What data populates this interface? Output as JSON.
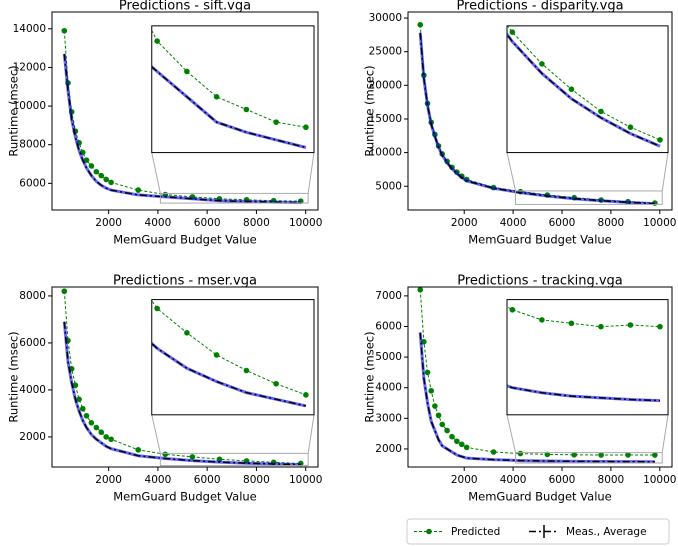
{
  "chart_data": [
    {
      "type": "line",
      "title": "Predictions - sift.vga",
      "xlabel": "MemGuard Budget Value",
      "ylabel": "Runtime (msec)",
      "x": [
        200,
        350,
        500,
        650,
        800,
        950,
        1100,
        1300,
        1500,
        1700,
        1900,
        2100,
        3200,
        4300,
        5400,
        6500,
        7600,
        8700,
        9800
      ],
      "xlim": [
        -300,
        10500
      ],
      "xticks": [
        2000,
        4000,
        6000,
        8000,
        10000
      ],
      "ylim": [
        4620,
        14870
      ],
      "yticks": [
        6000,
        8000,
        10000,
        12000,
        14000
      ],
      "inset": {
        "xlim": [
          4100,
          10100
        ],
        "ylim": [
          4980,
          5480
        ]
      },
      "series": [
        {
          "name": "Predicted",
          "color": "#008000",
          "linestyle": "dashed",
          "marker": "circle",
          "values": [
            13900,
            11200,
            9700,
            8700,
            8100,
            7600,
            7200,
            6900,
            6600,
            6400,
            6200,
            6050,
            5650,
            5420,
            5300,
            5200,
            5150,
            5100,
            5080
          ]
        },
        {
          "name": "Meas., Average",
          "color": "#000000",
          "band_color": "#0000ff",
          "linestyle": "dashdot",
          "marker": "none",
          "values": [
            12700,
            10800,
            9300,
            8400,
            7700,
            7200,
            6800,
            6400,
            6100,
            5900,
            5750,
            5650,
            5400,
            5300,
            5200,
            5100,
            5060,
            5030,
            5000
          ]
        }
      ]
    },
    {
      "type": "line",
      "title": "Predictions - disparity.vga",
      "xlabel": "MemGuard Budget Value",
      "ylabel": "Runtime (msec)",
      "x": [
        200,
        350,
        500,
        650,
        800,
        950,
        1100,
        1300,
        1500,
        1700,
        1900,
        2100,
        3200,
        4300,
        5400,
        6500,
        7600,
        8700,
        9800
      ],
      "xlim": [
        -300,
        10500
      ],
      "xticks": [
        2000,
        4000,
        6000,
        8000,
        10000
      ],
      "ylim": [
        1470,
        30900
      ],
      "yticks": [
        5000,
        10000,
        15000,
        20000,
        25000,
        30000
      ],
      "inset": {
        "xlim": [
          4100,
          10100
        ],
        "ylim": [
          2300,
          4300
        ]
      },
      "series": [
        {
          "name": "Predicted",
          "color": "#008000",
          "linestyle": "dashed",
          "marker": "circle",
          "values": [
            29000,
            21500,
            17300,
            14500,
            12700,
            11000,
            9800,
            8700,
            7800,
            7100,
            6500,
            6000,
            4800,
            4200,
            3700,
            3300,
            2950,
            2700,
            2500
          ]
        },
        {
          "name": "Meas., Average",
          "color": "#000000",
          "band_color": "#0000ff",
          "linestyle": "dashdot",
          "marker": "none",
          "values": [
            27800,
            21000,
            17000,
            14200,
            12400,
            10800,
            9600,
            8500,
            7600,
            6900,
            6300,
            5800,
            4700,
            4050,
            3550,
            3150,
            2850,
            2600,
            2400
          ]
        }
      ]
    },
    {
      "type": "line",
      "title": "Predictions - mser.vga",
      "xlabel": "MemGuard Budget Value",
      "ylabel": "Runtime (msec)",
      "x": [
        200,
        350,
        500,
        650,
        800,
        950,
        1100,
        1300,
        1500,
        1700,
        1900,
        2100,
        3200,
        4300,
        5400,
        6500,
        7600,
        8700,
        9800
      ],
      "xlim": [
        -300,
        10500
      ],
      "xticks": [
        2000,
        4000,
        6000,
        8000,
        10000
      ],
      "ylim": [
        720,
        8380
      ],
      "yticks": [
        2000,
        4000,
        6000,
        8000
      ],
      "inset": {
        "xlim": [
          4100,
          10100
        ],
        "ylim": [
          780,
          1300
        ]
      },
      "series": [
        {
          "name": "Predicted",
          "color": "#008000",
          "linestyle": "dashed",
          "marker": "circle",
          "values": [
            8200,
            6100,
            4900,
            4200,
            3600,
            3200,
            2900,
            2600,
            2400,
            2200,
            2000,
            1900,
            1450,
            1260,
            1150,
            1050,
            980,
            920,
            870
          ]
        },
        {
          "name": "Meas., Average",
          "color": "#000000",
          "band_color": "#0000ff",
          "linestyle": "dashdot",
          "marker": "none",
          "values": [
            6900,
            5200,
            4300,
            3600,
            3100,
            2700,
            2400,
            2100,
            1900,
            1750,
            1600,
            1500,
            1200,
            1080,
            990,
            930,
            880,
            850,
            820
          ]
        }
      ]
    },
    {
      "type": "line",
      "title": "Predictions - tracking.vga",
      "xlabel": "MemGuard Budget Value",
      "ylabel": "Runtime (msec)",
      "x": [
        200,
        350,
        500,
        650,
        800,
        950,
        1100,
        1300,
        1500,
        1700,
        1900,
        2100,
        3200,
        4300,
        5400,
        6500,
        7600,
        8700,
        9800
      ],
      "xlim": [
        -300,
        10500
      ],
      "xticks": [
        2000,
        4000,
        6000,
        8000,
        10000
      ],
      "ylim": [
        1410,
        7290
      ],
      "yticks": [
        2000,
        3000,
        4000,
        5000,
        6000,
        7000
      ],
      "inset": {
        "xlim": [
          4100,
          10100
        ],
        "ylim": [
          1540,
          1880
        ]
      },
      "series": [
        {
          "name": "Predicted",
          "color": "#008000",
          "linestyle": "dashed",
          "marker": "circle",
          "values": [
            7200,
            5500,
            4500,
            3900,
            3400,
            3100,
            2800,
            2600,
            2400,
            2250,
            2150,
            2050,
            1900,
            1850,
            1820,
            1810,
            1800,
            1805,
            1800
          ]
        },
        {
          "name": "Meas., Average",
          "color": "#000000",
          "band_color": "#0000ff",
          "linestyle": "dashdot",
          "marker": "none",
          "values": [
            5800,
            4300,
            3500,
            2900,
            2600,
            2300,
            2100,
            2000,
            1900,
            1800,
            1750,
            1700,
            1650,
            1620,
            1605,
            1595,
            1590,
            1585,
            1582
          ]
        }
      ]
    }
  ]
}
